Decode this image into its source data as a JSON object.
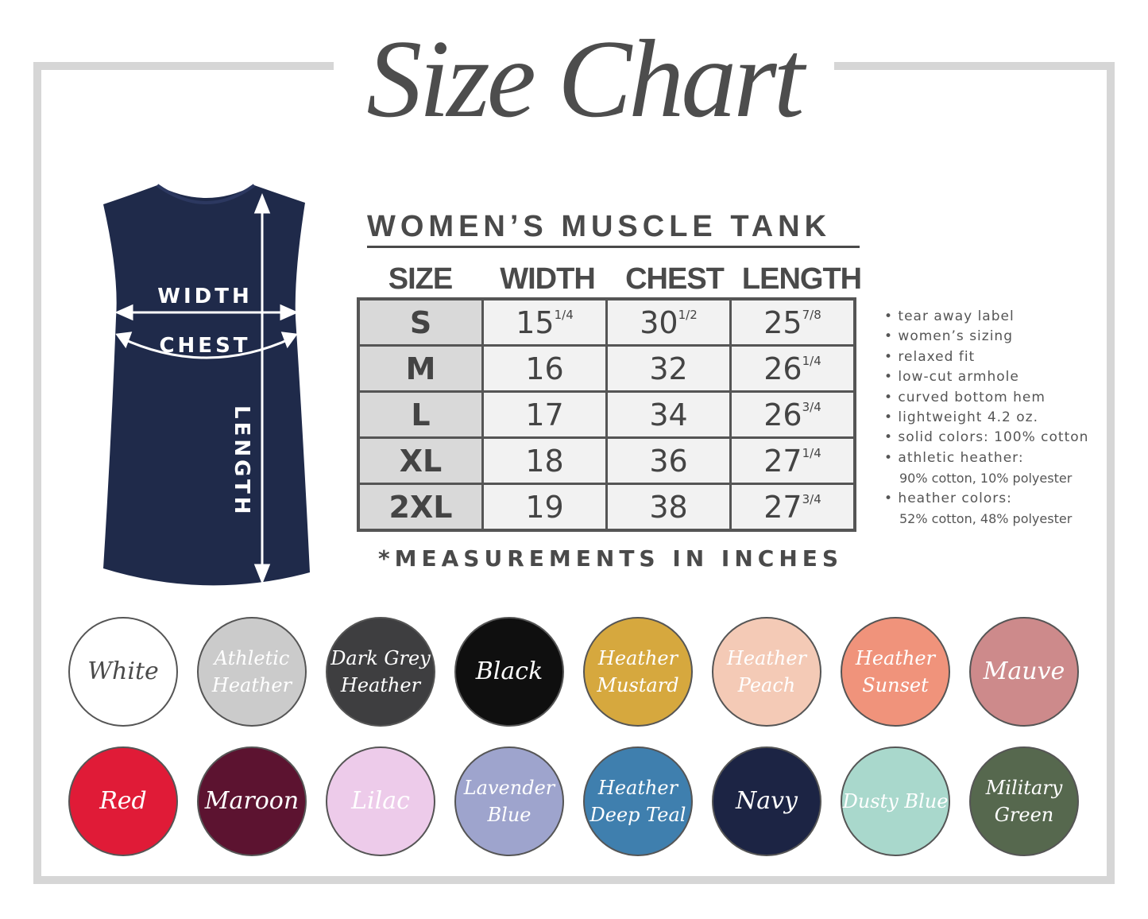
{
  "title": "Size Chart",
  "garment": {
    "labels": {
      "width": "WIDTH",
      "chest": "CHEST",
      "length": "LENGTH"
    },
    "color": "#1f2a4a"
  },
  "table": {
    "title": "WOMEN’S MUSCLE TANK",
    "headers": [
      "SIZE",
      "WIDTH",
      "CHEST",
      "LENGTH"
    ],
    "rows": [
      {
        "size": "S",
        "width": "15",
        "width_frac": "1/4",
        "chest": "30",
        "chest_frac": "1/2",
        "length": "25",
        "length_frac": "7/8"
      },
      {
        "size": "M",
        "width": "16",
        "width_frac": "",
        "chest": "32",
        "chest_frac": "",
        "length": "26",
        "length_frac": "1/4"
      },
      {
        "size": "L",
        "width": "17",
        "width_frac": "",
        "chest": "34",
        "chest_frac": "",
        "length": "26",
        "length_frac": "3/4"
      },
      {
        "size": "XL",
        "width": "18",
        "width_frac": "",
        "chest": "36",
        "chest_frac": "",
        "length": "27",
        "length_frac": "1/4"
      },
      {
        "size": "2XL",
        "width": "19",
        "width_frac": "",
        "chest": "38",
        "chest_frac": "",
        "length": "27",
        "length_frac": "3/4"
      }
    ],
    "note": "*MEASUREMENTS IN INCHES"
  },
  "features": [
    "• tear away label",
    "• women’s sizing",
    "• relaxed fit",
    "• low-cut armhole",
    "• curved bottom hem",
    "• lightweight 4.2 oz.",
    "• solid colors: 100% cotton",
    "• athletic heather:",
    "90% cotton, 10% polyester",
    "• heather colors:",
    "52% cotton, 48% polyester"
  ],
  "swatches": [
    {
      "name": "White",
      "color": "#ffffff",
      "text": "#4a4a4a"
    },
    {
      "name": "Athletic Heather",
      "color": "#cbcbcb",
      "text": "#ffffff"
    },
    {
      "name": "Dark Grey Heather",
      "color": "#3e3e40",
      "text": "#ffffff"
    },
    {
      "name": "Black",
      "color": "#0f0f0f",
      "text": "#ffffff"
    },
    {
      "name": "Heather Mustard",
      "color": "#d6a83e",
      "text": "#ffffff"
    },
    {
      "name": "Heather Peach",
      "color": "#f4cab6",
      "text": "#ffffff"
    },
    {
      "name": "Heather Sunset",
      "color": "#f0937b",
      "text": "#ffffff"
    },
    {
      "name": "Mauve",
      "color": "#cd8a8b",
      "text": "#ffffff"
    },
    {
      "name": "Red",
      "color": "#e01b37",
      "text": "#ffffff"
    },
    {
      "name": "Maroon",
      "color": "#5c1330",
      "text": "#ffffff"
    },
    {
      "name": "Lilac",
      "color": "#edcbea",
      "text": "#ffffff"
    },
    {
      "name": "Lavender Blue",
      "color": "#9ea4cd",
      "text": "#ffffff"
    },
    {
      "name": "Heather Deep Teal",
      "color": "#3f7fae",
      "text": "#ffffff"
    },
    {
      "name": "Navy",
      "color": "#1c2444",
      "text": "#ffffff"
    },
    {
      "name": "Dusty Blue",
      "color": "#a9d8cc",
      "text": "#ffffff"
    },
    {
      "name": "Military Green",
      "color": "#56684e",
      "text": "#ffffff"
    }
  ]
}
